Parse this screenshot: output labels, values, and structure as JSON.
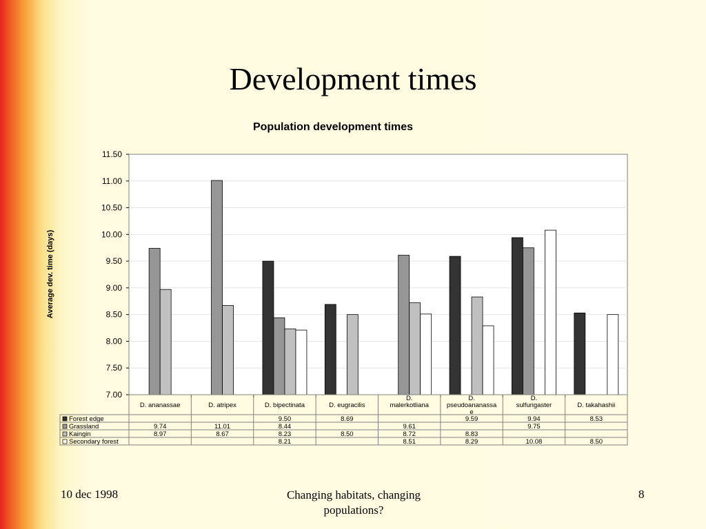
{
  "slide": {
    "title": "Development times",
    "footer_left": "10 dec 1998",
    "footer_center": "Changing habitats, changing populations?",
    "footer_right": "8"
  },
  "colors": {
    "Forest edge": "#333333",
    "Grassland": "#969696",
    "Kaingin": "#c0c0c0",
    "Secondary forest": "#ffffff"
  },
  "chart_data": {
    "type": "bar",
    "title": "Population development times",
    "ylabel": "Average dev. time (days)",
    "xlabel": "",
    "ylim": [
      7.0,
      11.5
    ],
    "yticks": [
      "7.00",
      "7.50",
      "8.00",
      "8.50",
      "9.00",
      "9.50",
      "10.00",
      "10.50",
      "11.00",
      "11.50"
    ],
    "categories": [
      "D. ananassae",
      "D. atripex",
      "D. bipectinata",
      "D. eugracilis",
      "D. malerkotliana",
      "D. pseudoananassae",
      "D. sulfurigaster",
      "D. takahashii"
    ],
    "series": [
      {
        "name": "Forest edge",
        "values": [
          null,
          null,
          9.5,
          8.69,
          null,
          9.59,
          9.94,
          8.53
        ],
        "labels": [
          "",
          "",
          "9.50",
          "8.69",
          "",
          "9.59",
          "9.94",
          "8.53"
        ]
      },
      {
        "name": "Grassland",
        "values": [
          9.74,
          11.01,
          8.44,
          null,
          9.61,
          null,
          9.75,
          null
        ],
        "labels": [
          "9.74",
          "11.01",
          "8.44",
          "",
          "9.61",
          "",
          "9.75",
          ""
        ]
      },
      {
        "name": "Kaingin",
        "values": [
          8.97,
          8.67,
          8.23,
          8.5,
          8.72,
          8.83,
          null,
          null
        ],
        "labels": [
          "8.97",
          "8.67",
          "8.23",
          "8.50",
          "8.72",
          "8.83",
          "",
          ""
        ]
      },
      {
        "name": "Secondary forest",
        "values": [
          null,
          null,
          8.21,
          null,
          8.51,
          8.29,
          10.08,
          8.5
        ],
        "labels": [
          "",
          "",
          "8.21",
          "",
          "8.51",
          "8.29",
          "10.08",
          "8.50"
        ]
      }
    ],
    "grid": true,
    "legend": "data table below chart"
  }
}
